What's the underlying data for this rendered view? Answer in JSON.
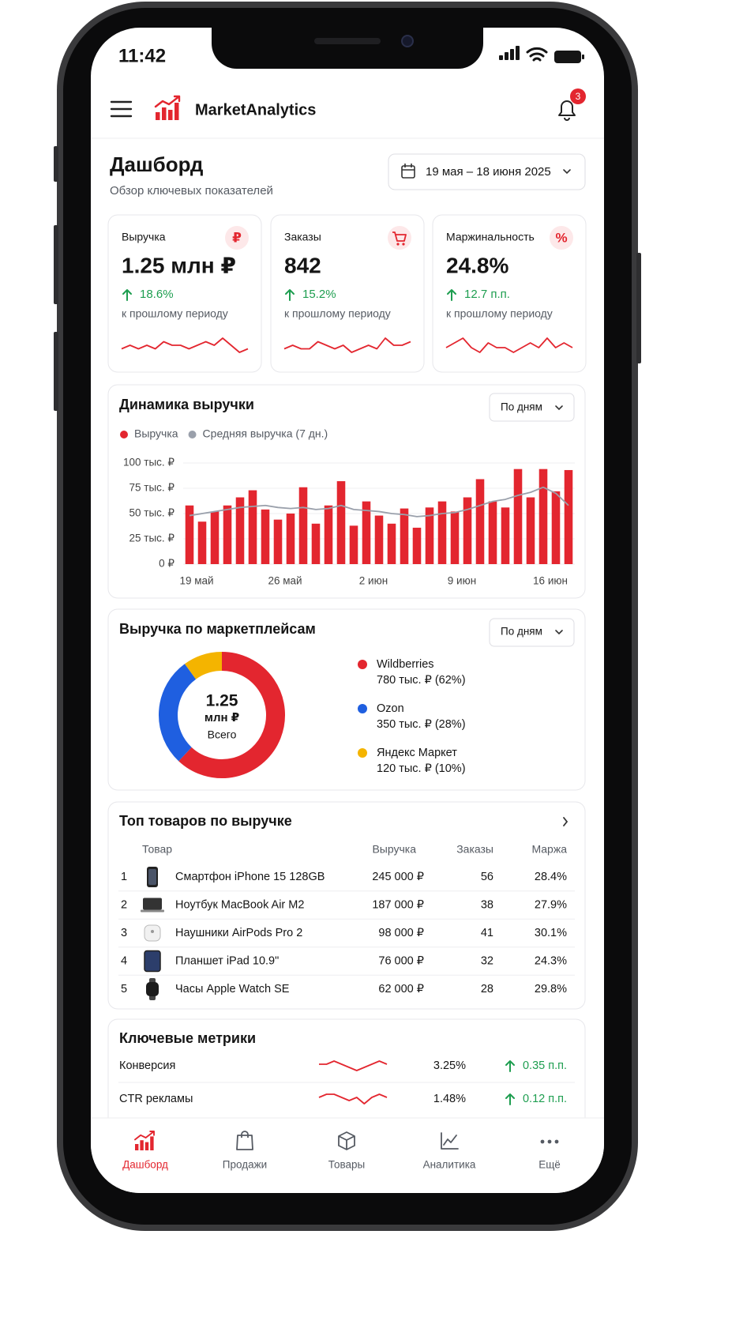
{
  "status_bar": {
    "time": "11:42"
  },
  "header": {
    "app_name": "MarketAnalytics",
    "notification_count": 3
  },
  "page": {
    "title": "Дашборд",
    "subtitle": "Обзор ключевых показателей",
    "date_range": "19 мая – 18 июня 2025"
  },
  "kpis": [
    {
      "label": "Выручка",
      "icon": "₽",
      "value": "1.25 млн ₽",
      "change": "18.6%",
      "note": "к прошлому периоду",
      "sparkline": [
        5,
        6,
        5,
        6,
        5,
        7,
        6,
        6,
        5,
        6,
        7,
        6,
        8,
        6,
        4,
        5
      ]
    },
    {
      "label": "Заказы",
      "value": "842",
      "change": "15.2%",
      "note": "к прошлому периоду",
      "sparkline": [
        5,
        6,
        5,
        5,
        7,
        6,
        5,
        6,
        4,
        5,
        6,
        5,
        8,
        6,
        6,
        7
      ]
    },
    {
      "label": "Маржинальность",
      "icon": "%",
      "value": "24.8%",
      "change": "12.7 п.п.",
      "note": "к прошлому периоду",
      "sparkline": [
        5,
        6,
        7,
        5,
        4,
        6,
        5,
        5,
        4,
        5,
        6,
        5,
        7,
        5,
        6,
        5
      ]
    }
  ],
  "revenue_chart": {
    "type": "bar",
    "title": "Динамика выручки",
    "period": "По дням",
    "categories": [
      "19 май",
      null,
      null,
      null,
      null,
      null,
      null,
      "26 май",
      null,
      null,
      null,
      null,
      null,
      null,
      "2 июн",
      null,
      null,
      null,
      null,
      null,
      null,
      "9 июн",
      null,
      null,
      null,
      null,
      null,
      null,
      "16 июн",
      null,
      null
    ],
    "series": [
      {
        "name": "Выручка",
        "color": "#e3262f",
        "values": [
          58,
          42,
          52,
          58,
          66,
          73,
          54,
          44,
          50,
          76,
          40,
          58,
          82,
          38,
          62,
          48,
          40,
          55,
          36,
          56,
          62,
          52,
          66,
          84,
          62,
          56,
          94,
          66,
          94,
          72,
          93
        ]
      },
      {
        "name": "Средняя выручка (7 дн.)",
        "color": "#9aa0ab",
        "type": "line",
        "values": [
          48,
          50,
          52,
          54,
          56,
          57,
          58,
          56,
          55,
          56,
          54,
          55,
          58,
          54,
          53,
          52,
          50,
          49,
          47,
          48,
          50,
          51,
          54,
          58,
          62,
          64,
          68,
          71,
          76,
          70,
          58
        ]
      }
    ],
    "ylim": [
      0,
      100
    ],
    "yticks": [
      {
        "value": 0,
        "label": "0 ₽"
      },
      {
        "value": 25,
        "label": "25 тыс. ₽"
      },
      {
        "value": 50,
        "label": "50 тыс. ₽"
      },
      {
        "value": 75,
        "label": "75 тыс. ₽"
      },
      {
        "value": 100,
        "label": "100 тыс. ₽"
      }
    ],
    "grid": true
  },
  "marketplace_chart": {
    "type": "pie",
    "title": "Выручка по маркетплейсам",
    "period": "По дням",
    "center_value": "1.25",
    "center_unit": "млн ₽",
    "center_label": "Всего",
    "categories": [
      "Wildberries",
      "Ozon",
      "Яндекс Маркет"
    ],
    "values": [
      62,
      28,
      10
    ],
    "value_labels": [
      "780 тыс. ₽ (62%)",
      "350 тыс. ₽ (28%)",
      "120 тыс. ₽ (10%)"
    ],
    "colors": [
      "#e3262f",
      "#1f5fe0",
      "#f4b400"
    ]
  },
  "top_products": {
    "title": "Топ товаров по выручке",
    "columns": [
      "Товар",
      "Выручка",
      "Заказы",
      "Маржа"
    ],
    "rows": [
      [
        "1",
        "Смартфон iPhone 15 128GB",
        "245 000 ₽",
        "56",
        "28.4%"
      ],
      [
        "2",
        "Ноутбук MacBook Air M2",
        "187 000 ₽",
        "38",
        "27.9%"
      ],
      [
        "3",
        "Наушники AirPods Pro 2",
        "98 000 ₽",
        "41",
        "30.1%"
      ],
      [
        "4",
        "Планшет iPad 10.9\"",
        "76 000 ₽",
        "32",
        "24.3%"
      ],
      [
        "5",
        "Часы Apple Watch SE",
        "62 000 ₽",
        "28",
        "29.8%"
      ]
    ]
  },
  "key_metrics": {
    "title": "Ключевые метрики",
    "rows": [
      {
        "name": "Конверсия",
        "sparkline": [
          5,
          5,
          6,
          5,
          4,
          3,
          4,
          5,
          6,
          5
        ],
        "value": "3.25%",
        "change": "0.35 п.п."
      },
      {
        "name": "CTR рекламы",
        "sparkline": [
          5,
          6,
          6,
          5,
          4,
          5,
          3,
          5,
          6,
          5
        ],
        "value": "1.48%",
        "change": "0.12 п.п."
      }
    ]
  },
  "nav": {
    "items": [
      "Дашборд",
      "Продажи",
      "Товары",
      "Аналитика",
      "Ещё"
    ],
    "active": 0
  }
}
